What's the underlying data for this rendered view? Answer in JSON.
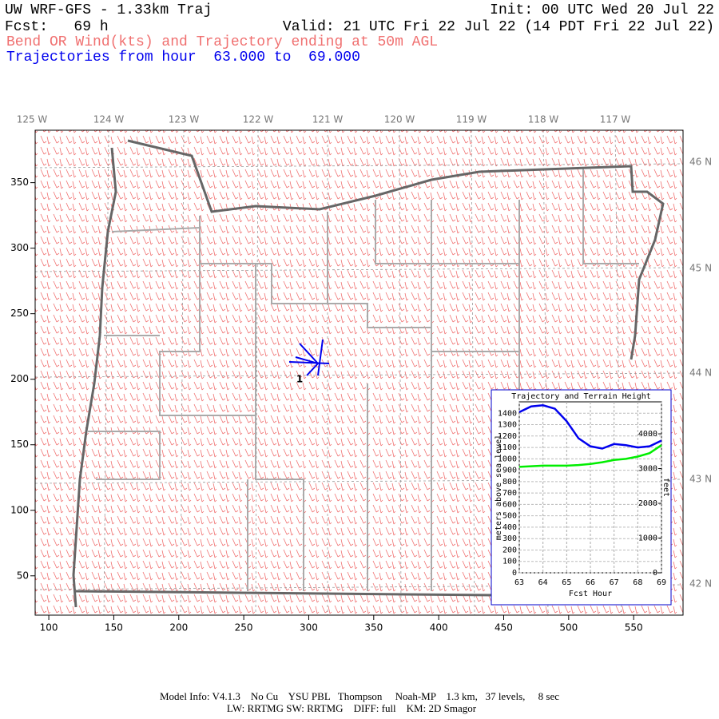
{
  "header": {
    "title": "UW WRF-GFS - 1.33km Traj",
    "init": "Init: 00 UTC Wed 20 Jul 22",
    "forecast": "Fcst:   69 h",
    "valid": "Valid: 21 UTC Fri 22 Jul 22 (14 PDT Fri 22 Jul 22)",
    "field": "Bend OR Wind(kts) and Trajectory ending at 50m AGL",
    "trajectories": "Trajectories from hour  63.000 to  69.000"
  },
  "map": {
    "xlim": [
      89.5,
      588
    ],
    "xticks": [
      100,
      150,
      200,
      250,
      300,
      350,
      400,
      450,
      500,
      550
    ],
    "ylim": [
      20,
      390
    ],
    "yticks": [
      50,
      100,
      150,
      200,
      250,
      300,
      350
    ],
    "longitude_labels": [
      "125 W",
      "124 W",
      "123 W",
      "122 W",
      "121 W",
      "120 W",
      "119 W",
      "118 W",
      "117 W"
    ],
    "latitude_labels": [
      "46 N",
      "45 N",
      "44 N",
      "43 N",
      "42 N"
    ],
    "trajectory_label": "1",
    "barb_color": "#f07070",
    "trajectory_color": "#0000ee"
  },
  "chart_data": {
    "type": "line",
    "title": "Trajectory and Terrain Height",
    "xlabel": "Fcst Hour",
    "ylabel": "meters above sea level",
    "y2label": "feet",
    "x": [
      63,
      63.5,
      64,
      64.5,
      65,
      65.5,
      66,
      66.5,
      67,
      67.5,
      68,
      68.5,
      69
    ],
    "series": [
      {
        "color": "#0000ee",
        "values": [
          1410,
          1460,
          1470,
          1440,
          1330,
          1180,
          1110,
          1090,
          1130,
          1120,
          1100,
          1110,
          1160
        ]
      },
      {
        "color": "#00ee00",
        "values": [
          930,
          935,
          940,
          940,
          940,
          945,
          955,
          970,
          990,
          1000,
          1020,
          1050,
          1120
        ]
      }
    ],
    "xlim": [
      63,
      69
    ],
    "xticks": [
      63,
      64,
      65,
      66,
      67,
      68,
      69
    ],
    "ylim": [
      0,
      1500
    ],
    "yticks": [
      0,
      100,
      200,
      300,
      400,
      500,
      600,
      700,
      800,
      900,
      1000,
      1100,
      1200,
      1300,
      1400
    ],
    "y2lim": [
      0,
      4921
    ],
    "y2ticks": [
      0,
      1000,
      2000,
      3000,
      4000
    ],
    "grid": true
  },
  "footer": {
    "line1": "Model Info: V4.1.3    No Cu    YSU PBL   Thompson     Noah-MP    1.3 km,   37 levels,     8 sec",
    "line2": "LW: RRTMG SW: RRTMG    DIFF: full    KM: 2D Smagor"
  }
}
